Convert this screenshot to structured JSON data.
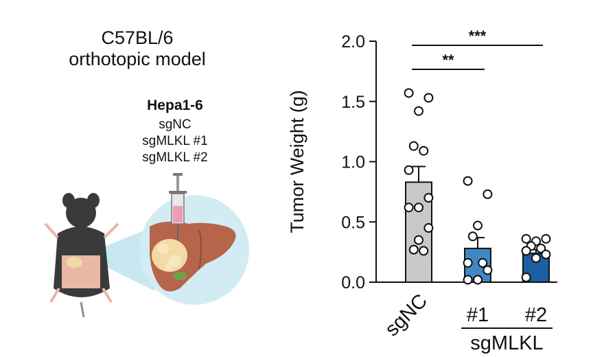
{
  "model": {
    "title_line1": "C57BL/6",
    "title_line2": "orthotopic model"
  },
  "cells": {
    "name": "Hepa1-6",
    "groups": [
      "sgNC",
      "sgMLKL #1",
      "sgMLKL #2"
    ]
  },
  "illustration": {
    "icons": [
      "mouse-icon",
      "syringe-icon",
      "liver-icon",
      "tumor-icon"
    ],
    "colors": {
      "mouse": "#3a3a3a",
      "liver": "#b6644a",
      "tumor": "#f3d9a4",
      "bubble": "#cfe8f1",
      "syringe": "#ef9bb4"
    }
  },
  "chart_data": {
    "type": "bar",
    "ylabel": "Tumor Weight (g)",
    "xlabel": "",
    "ylim": [
      0,
      2.0
    ],
    "yticks": [
      "0.0",
      "0.5",
      "1.0",
      "1.5",
      "2.0"
    ],
    "ytick_values": [
      0,
      0.5,
      1.0,
      1.5,
      2.0
    ],
    "categories": [
      "sgNC",
      "#1",
      "#2"
    ],
    "group_label": "sgMLKL",
    "values": [
      0.83,
      0.28,
      0.24
    ],
    "errors": [
      0.13,
      0.09,
      0.03
    ],
    "colors": [
      "#c8c8c8",
      "#3f88c5",
      "#1b5fa2"
    ],
    "points": [
      [
        1.57,
        1.53,
        1.42,
        1.13,
        1.09,
        0.93,
        0.7,
        0.62,
        0.62,
        0.45,
        0.35,
        0.27,
        0.26
      ],
      [
        0.84,
        0.73,
        0.47,
        0.38,
        0.16,
        0.16,
        0.1,
        0.02,
        0.02
      ],
      [
        0.36,
        0.36,
        0.34,
        0.3,
        0.28,
        0.26,
        0.23,
        0.2,
        0.04
      ]
    ],
    "significance": [
      {
        "from": 0,
        "to": 1,
        "label": "**"
      },
      {
        "from": 0,
        "to": 2,
        "label": "***"
      }
    ]
  }
}
